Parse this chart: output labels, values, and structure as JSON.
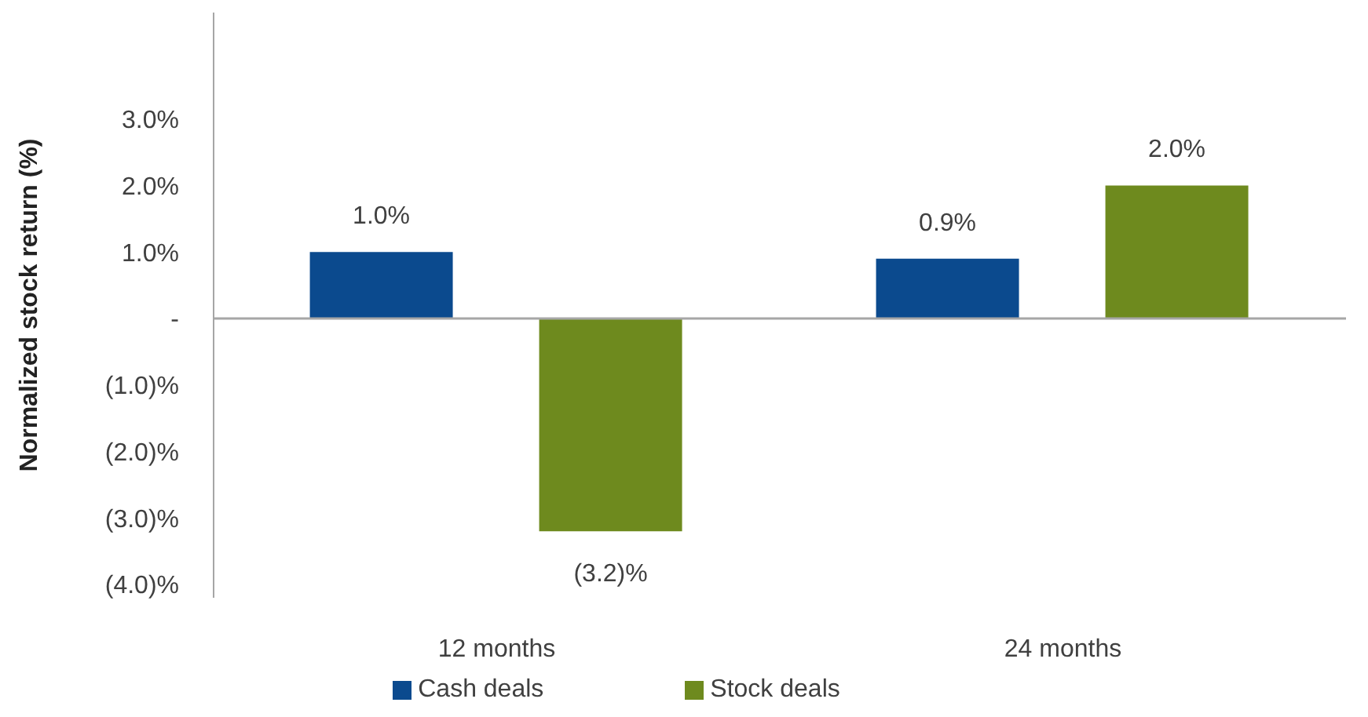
{
  "chart_data": {
    "type": "bar",
    "ylabel": "Normalized stock return (%)",
    "categories": [
      "12 months",
      "24 months"
    ],
    "series": [
      {
        "name": "Cash deals",
        "color": "#0b4a8e",
        "values": [
          1.0,
          0.9
        ],
        "value_labels": [
          "1.0%",
          "0.9%"
        ]
      },
      {
        "name": "Stock deals",
        "color": "#6e8a1e",
        "values": [
          -3.2,
          2.0
        ],
        "value_labels": [
          "(3.2)%",
          "2.0%"
        ]
      }
    ],
    "ylim": [
      -4.2,
      4.6
    ],
    "yticks": [
      {
        "value": 3,
        "label": "3.0%"
      },
      {
        "value": 2,
        "label": "2.0%"
      },
      {
        "value": 1,
        "label": "1.0%"
      },
      {
        "value": 0,
        "label": "-"
      },
      {
        "value": -1,
        "label": "(1.0)%"
      },
      {
        "value": -2,
        "label": "(2.0)%"
      },
      {
        "value": -3,
        "label": "(3.0)%"
      },
      {
        "value": -4,
        "label": "(4.0)%"
      }
    ],
    "ref_lines": [
      {
        "axis": "y",
        "value": 0,
        "color": "#a6a6a6"
      }
    ],
    "grid": false,
    "legend": "bottom"
  }
}
